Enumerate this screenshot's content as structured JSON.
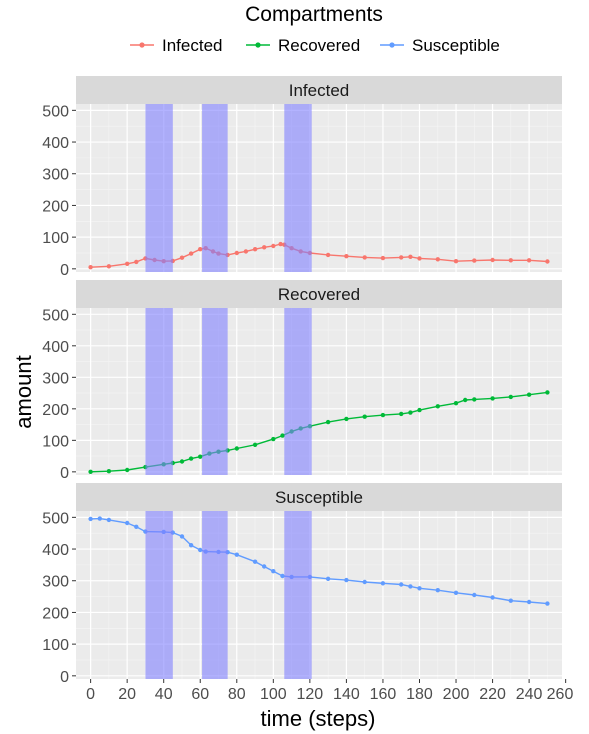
{
  "chart_data": {
    "type": "line",
    "legend": {
      "title": "Compartments",
      "position": "top",
      "entries": [
        {
          "name": "Infected",
          "color": "#F8766D"
        },
        {
          "name": "Recovered",
          "color": "#00BA38"
        },
        {
          "name": "Susceptible",
          "color": "#619CFF"
        }
      ]
    },
    "xlabel": "time (steps)",
    "ylabel": "amount",
    "xlim": [
      -8,
      258
    ],
    "xticks": [
      0,
      20,
      40,
      60,
      80,
      100,
      120,
      140,
      160,
      180,
      200,
      220,
      240,
      260
    ],
    "ylim": [
      -10,
      520
    ],
    "yticks": [
      0,
      100,
      200,
      300,
      400,
      500
    ],
    "grid": true,
    "highlight_bands": [
      [
        30,
        45
      ],
      [
        61,
        75
      ],
      [
        106,
        121
      ]
    ],
    "highlight_color": "#8080FF",
    "panels": [
      {
        "strip_label": "Infected",
        "color": "#F8766D",
        "points": [
          [
            0,
            5
          ],
          [
            10,
            8
          ],
          [
            20,
            16
          ],
          [
            25,
            22
          ],
          [
            30,
            33
          ],
          [
            35,
            28
          ],
          [
            40,
            24
          ],
          [
            45,
            25
          ],
          [
            50,
            35
          ],
          [
            55,
            48
          ],
          [
            60,
            62
          ],
          [
            63,
            65
          ],
          [
            67,
            55
          ],
          [
            70,
            48
          ],
          [
            75,
            44
          ],
          [
            80,
            50
          ],
          [
            85,
            55
          ],
          [
            90,
            62
          ],
          [
            95,
            68
          ],
          [
            100,
            72
          ],
          [
            104,
            78
          ],
          [
            106,
            76
          ],
          [
            110,
            65
          ],
          [
            115,
            55
          ],
          [
            120,
            50
          ],
          [
            130,
            44
          ],
          [
            140,
            40
          ],
          [
            150,
            36
          ],
          [
            160,
            34
          ],
          [
            170,
            36
          ],
          [
            175,
            38
          ],
          [
            180,
            33
          ],
          [
            190,
            30
          ],
          [
            200,
            24
          ],
          [
            210,
            26
          ],
          [
            220,
            28
          ],
          [
            230,
            27
          ],
          [
            240,
            27
          ],
          [
            250,
            23
          ]
        ]
      },
      {
        "strip_label": "Recovered",
        "color": "#00BA38",
        "points": [
          [
            0,
            0
          ],
          [
            10,
            2
          ],
          [
            20,
            6
          ],
          [
            30,
            15
          ],
          [
            40,
            24
          ],
          [
            45,
            28
          ],
          [
            50,
            33
          ],
          [
            55,
            42
          ],
          [
            60,
            48
          ],
          [
            65,
            58
          ],
          [
            70,
            64
          ],
          [
            75,
            68
          ],
          [
            80,
            74
          ],
          [
            90,
            86
          ],
          [
            100,
            104
          ],
          [
            105,
            115
          ],
          [
            110,
            128
          ],
          [
            115,
            138
          ],
          [
            120,
            145
          ],
          [
            130,
            158
          ],
          [
            140,
            168
          ],
          [
            150,
            175
          ],
          [
            160,
            180
          ],
          [
            170,
            184
          ],
          [
            175,
            188
          ],
          [
            180,
            196
          ],
          [
            190,
            208
          ],
          [
            200,
            218
          ],
          [
            205,
            228
          ],
          [
            210,
            230
          ],
          [
            220,
            233
          ],
          [
            230,
            238
          ],
          [
            240,
            245
          ],
          [
            250,
            252
          ]
        ]
      },
      {
        "strip_label": "Susceptible",
        "color": "#619CFF",
        "points": [
          [
            0,
            495
          ],
          [
            5,
            496
          ],
          [
            10,
            492
          ],
          [
            20,
            482
          ],
          [
            25,
            470
          ],
          [
            30,
            455
          ],
          [
            40,
            454
          ],
          [
            45,
            452
          ],
          [
            50,
            440
          ],
          [
            55,
            412
          ],
          [
            60,
            397
          ],
          [
            63,
            392
          ],
          [
            70,
            391
          ],
          [
            75,
            390
          ],
          [
            80,
            382
          ],
          [
            90,
            360
          ],
          [
            95,
            345
          ],
          [
            100,
            330
          ],
          [
            105,
            315
          ],
          [
            110,
            312
          ],
          [
            120,
            312
          ],
          [
            130,
            306
          ],
          [
            140,
            302
          ],
          [
            150,
            296
          ],
          [
            160,
            292
          ],
          [
            170,
            288
          ],
          [
            175,
            282
          ],
          [
            180,
            276
          ],
          [
            190,
            270
          ],
          [
            200,
            262
          ],
          [
            210,
            255
          ],
          [
            220,
            247
          ],
          [
            230,
            237
          ],
          [
            240,
            233
          ],
          [
            250,
            228
          ]
        ]
      }
    ]
  }
}
